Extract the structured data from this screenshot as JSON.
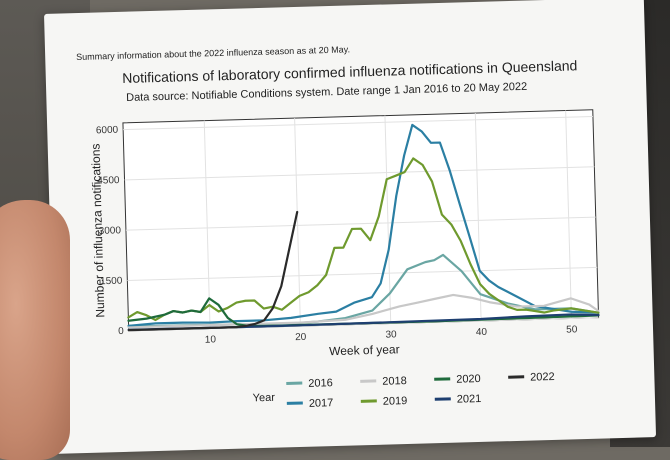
{
  "header": {
    "summary": "Summary information about the 2022 influenza season as at 20 May."
  },
  "chart_data": {
    "type": "line",
    "title": "Notifications of laboratory confirmed influenza notifications in Queensland",
    "subtitle": "Data source: Notifiable Conditions system. Date range 1 Jan 2016 to 20 May 2022",
    "xlabel": "Week of year",
    "ylabel": "Number of influenza notifications",
    "xlim": [
      1,
      53
    ],
    "ylim": [
      0,
      6200
    ],
    "xticks": [
      10,
      20,
      30,
      40,
      50
    ],
    "yticks": [
      0,
      1500,
      3000,
      4500,
      6000
    ],
    "grid": true,
    "legend": {
      "title": "Year",
      "placement": "bottom"
    },
    "series": [
      {
        "name": "2016",
        "color": "#6aa6a3",
        "x": [
          1,
          4,
          7,
          10,
          13,
          16,
          19,
          22,
          25,
          28,
          30,
          32,
          34,
          35,
          36,
          38,
          40,
          43,
          46,
          50,
          53
        ],
        "y": [
          150,
          120,
          120,
          110,
          100,
          90,
          80,
          120,
          200,
          400,
          900,
          1600,
          1800,
          1850,
          2000,
          1500,
          800,
          500,
          300,
          300,
          150
        ]
      },
      {
        "name": "2017",
        "color": "#2b7fa3",
        "x": [
          1,
          4,
          7,
          10,
          13,
          16,
          19,
          22,
          24,
          26,
          28,
          29,
          30,
          31,
          32,
          33,
          34,
          35,
          36,
          37,
          38,
          39,
          40,
          41,
          42,
          44,
          46,
          50,
          53
        ],
        "y": [
          150,
          200,
          200,
          180,
          200,
          200,
          250,
          350,
          400,
          650,
          800,
          1200,
          2200,
          3800,
          5000,
          5900,
          5700,
          5350,
          5350,
          4500,
          3500,
          2500,
          1500,
          1200,
          1000,
          700,
          400,
          200,
          150
        ]
      },
      {
        "name": "2018",
        "color": "#c8c8c8",
        "x": [
          1,
          5,
          10,
          15,
          20,
          25,
          28,
          31,
          33,
          35,
          37,
          39,
          41,
          44,
          47,
          50,
          52,
          53
        ],
        "y": [
          100,
          100,
          100,
          100,
          100,
          150,
          300,
          500,
          600,
          700,
          800,
          700,
          550,
          400,
          400,
          600,
          400,
          200
        ]
      },
      {
        "name": "2019",
        "color": "#6f9a2e",
        "x": [
          1,
          2,
          3,
          4,
          5,
          6,
          7,
          8,
          9,
          10,
          11,
          12,
          13,
          14,
          15,
          16,
          17,
          18,
          19,
          20,
          21,
          22,
          23,
          24,
          25,
          26,
          27,
          28,
          29,
          30,
          31,
          32,
          33,
          34,
          35,
          36,
          37,
          38,
          39,
          40,
          41,
          42,
          43,
          44,
          45,
          46,
          47,
          48,
          50,
          53
        ],
        "y": [
          400,
          550,
          450,
          300,
          450,
          550,
          500,
          550,
          500,
          700,
          500,
          600,
          750,
          800,
          800,
          550,
          600,
          500,
          700,
          900,
          1000,
          1200,
          1500,
          2300,
          2300,
          2850,
          2850,
          2500,
          3200,
          4300,
          4400,
          4500,
          4900,
          4700,
          4200,
          3200,
          2900,
          2400,
          1700,
          1100,
          800,
          600,
          400,
          300,
          300,
          250,
          200,
          250,
          300,
          150
        ]
      },
      {
        "name": "2020",
        "color": "#1f6b3c",
        "x": [
          1,
          3,
          5,
          6,
          7,
          8,
          9,
          10,
          11,
          12,
          13,
          14,
          15,
          16,
          17,
          18,
          19,
          20,
          25,
          30,
          35,
          40,
          45,
          50,
          53
        ],
        "y": [
          300,
          350,
          450,
          550,
          500,
          550,
          500,
          900,
          700,
          300,
          100,
          60,
          40,
          30,
          30,
          20,
          30,
          30,
          30,
          30,
          30,
          40,
          50,
          60,
          70
        ]
      },
      {
        "name": "2021",
        "color": "#1e3f70",
        "x": [
          1,
          5,
          10,
          15,
          20,
          25,
          30,
          35,
          40,
          45,
          50,
          53
        ],
        "y": [
          30,
          30,
          20,
          20,
          20,
          30,
          40,
          50,
          60,
          100,
          120,
          80
        ]
      },
      {
        "name": "2022",
        "color": "#2a2a2a",
        "x": [
          1,
          5,
          10,
          13,
          14,
          15,
          16,
          17,
          18,
          19,
          20
        ],
        "y": [
          20,
          20,
          20,
          20,
          50,
          100,
          200,
          550,
          1200,
          2300,
          3400
        ]
      }
    ]
  }
}
